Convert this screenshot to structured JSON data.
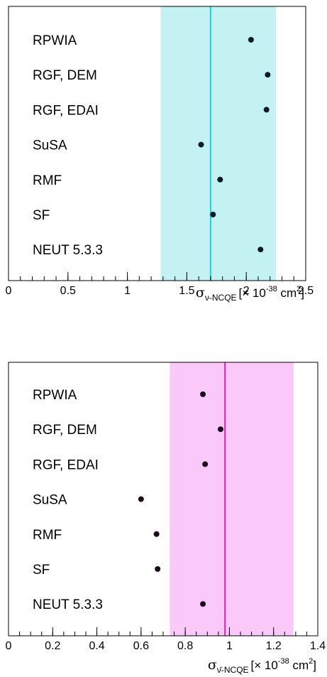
{
  "chart_data": [
    {
      "type": "scatter",
      "categories": [
        "RPWIA",
        "RGF, DEM",
        "RGF, EDAI",
        "SuSA",
        "RMF",
        "SF",
        "NEUT 5.3.3"
      ],
      "values": [
        2.04,
        2.18,
        2.17,
        1.62,
        1.78,
        1.72,
        2.12
      ],
      "band": [
        1.28,
        2.25
      ],
      "measured": 1.7,
      "xlim": [
        0,
        2.5
      ],
      "ticks": [
        "0",
        "0.5",
        "1",
        "1.5",
        "2",
        "2.5"
      ],
      "tick_values": [
        0,
        0.5,
        1,
        1.5,
        2,
        2.5
      ],
      "minor_step": 0.1,
      "band_color": "#c4f1f1",
      "line_color": "#17d4d8",
      "marker_color": "#0d1a2a",
      "xlabel": {
        "symbol": "σ",
        "sub": "ν-NCQE",
        "unit_open": "[× 10",
        "exp": "-38",
        "unit_mid": " cm",
        "unit_exp": "2",
        "unit_close": "]"
      }
    },
    {
      "type": "scatter",
      "categories": [
        "RPWIA",
        "RGF, DEM",
        "RGF, EDAI",
        "SuSA",
        "RMF",
        "SF",
        "NEUT 5.3.3"
      ],
      "values": [
        0.88,
        0.96,
        0.89,
        0.6,
        0.67,
        0.675,
        0.88
      ],
      "band": [
        0.73,
        1.29
      ],
      "measured": 0.98,
      "xlim": [
        0,
        1.4
      ],
      "ticks": [
        "0",
        "0.2",
        "0.4",
        "0.6",
        "0.8",
        "1",
        "1.2",
        "1.4"
      ],
      "tick_values": [
        0,
        0.2,
        0.4,
        0.6,
        0.8,
        1.0,
        1.2,
        1.4
      ],
      "minor_step": 0.05,
      "band_color": "#fac9fa",
      "line_color": "#e01bb0",
      "marker_color": "#1a0a1a",
      "xlabel": {
        "symbol": "σ",
        "sub": "ν̄-NCQE",
        "unit_open": "[× 10",
        "exp": "-38",
        "unit_mid": " cm",
        "unit_exp": "2",
        "unit_close": "]"
      }
    }
  ]
}
